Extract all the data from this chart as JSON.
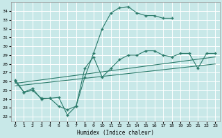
{
  "title": "",
  "xlabel": "Humidex (Indice chaleur)",
  "bg_color": "#c8e8e8",
  "grid_color": "#ffffff",
  "line_color": "#2a7a6a",
  "xlim": [
    -0.5,
    23.5
  ],
  "ylim": [
    21.5,
    35.0
  ],
  "xticks": [
    0,
    1,
    2,
    3,
    4,
    5,
    6,
    7,
    8,
    9,
    10,
    11,
    12,
    13,
    14,
    15,
    16,
    17,
    18,
    19,
    20,
    21,
    22,
    23
  ],
  "yticks": [
    22,
    23,
    24,
    25,
    26,
    27,
    28,
    29,
    30,
    31,
    32,
    33,
    34
  ],
  "series": [
    {
      "x": [
        0,
        1,
        2,
        3,
        4,
        5,
        6,
        7,
        8,
        9,
        10,
        11,
        12,
        13,
        14,
        15,
        16,
        17,
        18
      ],
      "y": [
        26.2,
        24.8,
        25.2,
        24.0,
        24.1,
        24.2,
        22.2,
        23.2,
        26.5,
        29.2,
        32.0,
        33.8,
        34.4,
        34.5,
        33.8,
        33.5,
        33.5,
        33.2,
        33.2
      ],
      "marker": "+",
      "markersize": 3,
      "linewidth": 0.8
    },
    {
      "x": [
        0,
        1,
        2,
        3,
        4,
        5,
        6,
        7,
        8,
        9,
        10,
        11,
        12,
        13,
        14,
        15,
        16,
        17,
        18,
        19,
        20,
        21,
        22,
        23
      ],
      "y": [
        26.0,
        24.8,
        25.0,
        24.1,
        24.1,
        23.2,
        22.8,
        23.2,
        27.5,
        28.8,
        26.5,
        27.5,
        28.5,
        29.0,
        29.0,
        29.5,
        29.5,
        29.0,
        28.8,
        29.2,
        29.2,
        27.5,
        29.2,
        29.2
      ],
      "marker": "+",
      "markersize": 3,
      "linewidth": 0.8
    },
    {
      "x": [
        0,
        23
      ],
      "y": [
        25.8,
        28.8
      ],
      "marker": null,
      "markersize": 0,
      "linewidth": 0.8
    },
    {
      "x": [
        0,
        23
      ],
      "y": [
        25.5,
        28.0
      ],
      "marker": null,
      "markersize": 0,
      "linewidth": 0.8
    }
  ]
}
